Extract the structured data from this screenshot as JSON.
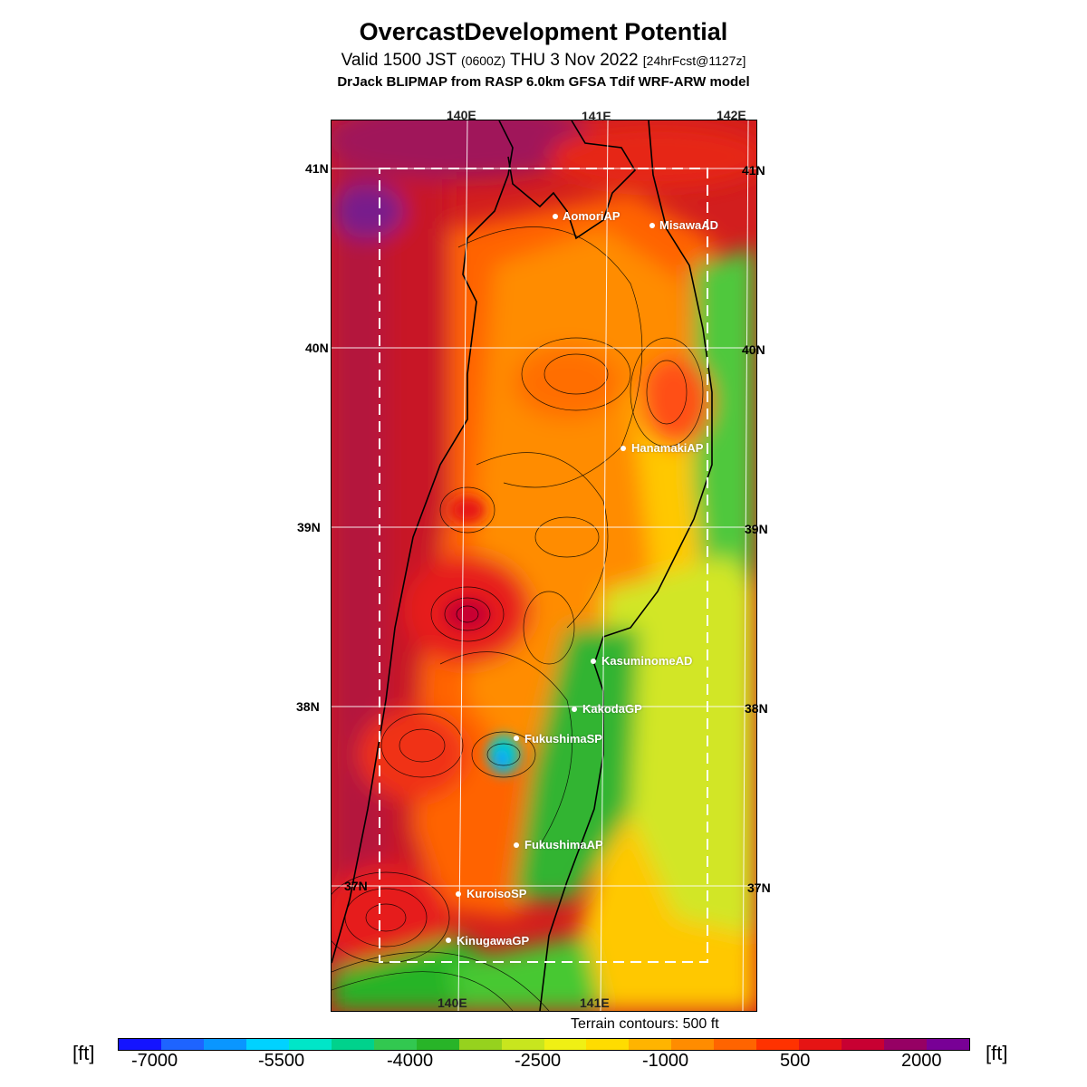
{
  "title": {
    "main": "OvercastDevelopment Potential",
    "valid_prefix": "Valid 1500 JST",
    "valid_utc": "(0600Z)",
    "valid_date": "THU 3 Nov 2022",
    "forecast_note": "[24hrFcst@1127z]",
    "model_line": "DrJack BLIPMAP from RASP 6.0km GFSA Tdif WRF-ARW model"
  },
  "axes": {
    "lon_ticks": [
      "140E",
      "141E",
      "142E"
    ],
    "lat_ticks": [
      "41N",
      "40N",
      "39N",
      "38N",
      "37N"
    ]
  },
  "places": [
    {
      "name": "AomoriAP"
    },
    {
      "name": "MisawaAD"
    },
    {
      "name": "HanamakiAP"
    },
    {
      "name": "KasuminomeAD"
    },
    {
      "name": "KakodaGP"
    },
    {
      "name": "FukushimaSP"
    },
    {
      "name": "FukushimaAP"
    },
    {
      "name": "KuroisoSP"
    },
    {
      "name": "KinugawaGP"
    }
  ],
  "terrain_note": "Terrain contours: 500 ft",
  "colorbar": {
    "unit": "[ft]",
    "labels": [
      "-7000",
      "-5500",
      "-4000",
      "-2500",
      "-1000",
      "500",
      "2000"
    ],
    "colors": [
      "#1414ff",
      "#1e64ff",
      "#0a96ff",
      "#00d2ff",
      "#00e6c8",
      "#00d28c",
      "#32c850",
      "#28b428",
      "#96d21e",
      "#c8e61e",
      "#f0f014",
      "#ffdc00",
      "#ffb400",
      "#ff8c00",
      "#ff6400",
      "#ff3200",
      "#e61414",
      "#c80032",
      "#960064",
      "#780096"
    ]
  }
}
